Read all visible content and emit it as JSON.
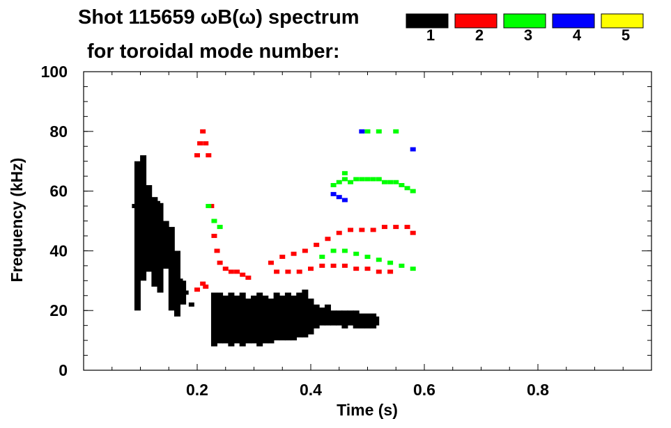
{
  "chart_data": {
    "type": "scatter",
    "title_line1": "Shot 115659 ωB(ω) spectrum",
    "title_line2": "for toroidal mode number:",
    "xlabel": "Time (s)",
    "ylabel": "Frequency (kHz)",
    "xlim": [
      0.0,
      1.0
    ],
    "ylim": [
      0,
      100
    ],
    "x_ticks": [
      {
        "value": 0.2,
        "label": "0.2"
      },
      {
        "value": 0.4,
        "label": "0.4"
      },
      {
        "value": 0.6,
        "label": "0.6"
      },
      {
        "value": 0.8,
        "label": "0.8"
      }
    ],
    "y_ticks": [
      {
        "value": 0,
        "label": "0"
      },
      {
        "value": 20,
        "label": "20"
      },
      {
        "value": 40,
        "label": "40"
      },
      {
        "value": 60,
        "label": "60"
      },
      {
        "value": 80,
        "label": "80"
      },
      {
        "value": 100,
        "label": "100"
      }
    ],
    "legend": [
      {
        "label": "1",
        "color": "#000000"
      },
      {
        "label": "2",
        "color": "#ff0000"
      },
      {
        "label": "3",
        "color": "#00ff00"
      },
      {
        "label": "4",
        "color": "#0000ff"
      },
      {
        "label": "5",
        "color": "#ffff00"
      }
    ],
    "series": [
      {
        "name": "n=1",
        "color": "#000000",
        "points": [
          [
            0.09,
            55
          ],
          [
            0.095,
            62
          ],
          [
            0.1,
            66
          ],
          [
            0.105,
            62
          ],
          [
            0.11,
            55
          ],
          [
            0.115,
            48
          ],
          [
            0.12,
            52
          ],
          [
            0.13,
            56
          ],
          [
            0.14,
            48
          ],
          [
            0.15,
            42
          ],
          [
            0.16,
            35
          ],
          [
            0.17,
            30
          ],
          [
            0.18,
            26
          ],
          [
            0.19,
            22
          ],
          [
            0.23,
            16
          ],
          [
            0.25,
            17
          ],
          [
            0.27,
            16
          ],
          [
            0.29,
            16
          ],
          [
            0.31,
            17
          ],
          [
            0.33,
            16
          ],
          [
            0.35,
            17
          ],
          [
            0.37,
            17
          ],
          [
            0.39,
            18
          ],
          [
            0.41,
            18
          ],
          [
            0.43,
            17
          ],
          [
            0.45,
            18
          ],
          [
            0.47,
            17
          ],
          [
            0.49,
            17
          ],
          [
            0.51,
            16
          ]
        ],
        "bands": [
          {
            "x": 0.095,
            "ymin": 20,
            "ymax": 70
          },
          {
            "x": 0.105,
            "ymin": 30,
            "ymax": 72
          },
          {
            "x": 0.115,
            "ymin": 33,
            "ymax": 62
          },
          {
            "x": 0.125,
            "ymin": 28,
            "ymax": 58
          },
          {
            "x": 0.135,
            "ymin": 26,
            "ymax": 56
          },
          {
            "x": 0.145,
            "ymin": 34,
            "ymax": 50
          },
          {
            "x": 0.155,
            "ymin": 20,
            "ymax": 48
          },
          {
            "x": 0.165,
            "ymin": 18,
            "ymax": 40
          },
          {
            "x": 0.175,
            "ymin": 22,
            "ymax": 30
          },
          {
            "x": 0.23,
            "ymin": 8,
            "ymax": 26
          },
          {
            "x": 0.24,
            "ymin": 9,
            "ymax": 26
          },
          {
            "x": 0.25,
            "ymin": 9,
            "ymax": 25
          },
          {
            "x": 0.26,
            "ymin": 8,
            "ymax": 26
          },
          {
            "x": 0.27,
            "ymin": 9,
            "ymax": 25
          },
          {
            "x": 0.28,
            "ymin": 8,
            "ymax": 26
          },
          {
            "x": 0.29,
            "ymin": 9,
            "ymax": 24
          },
          {
            "x": 0.3,
            "ymin": 9,
            "ymax": 25
          },
          {
            "x": 0.31,
            "ymin": 8,
            "ymax": 26
          },
          {
            "x": 0.32,
            "ymin": 9,
            "ymax": 25
          },
          {
            "x": 0.33,
            "ymin": 9,
            "ymax": 24
          },
          {
            "x": 0.34,
            "ymin": 10,
            "ymax": 26
          },
          {
            "x": 0.35,
            "ymin": 10,
            "ymax": 25
          },
          {
            "x": 0.36,
            "ymin": 10,
            "ymax": 26
          },
          {
            "x": 0.37,
            "ymin": 10,
            "ymax": 25
          },
          {
            "x": 0.38,
            "ymin": 11,
            "ymax": 26
          },
          {
            "x": 0.39,
            "ymin": 11,
            "ymax": 27
          },
          {
            "x": 0.4,
            "ymin": 12,
            "ymax": 24
          },
          {
            "x": 0.41,
            "ymin": 14,
            "ymax": 22
          },
          {
            "x": 0.42,
            "ymin": 15,
            "ymax": 21
          },
          {
            "x": 0.43,
            "ymin": 15,
            "ymax": 22
          },
          {
            "x": 0.44,
            "ymin": 15,
            "ymax": 20
          },
          {
            "x": 0.45,
            "ymin": 15,
            "ymax": 20
          },
          {
            "x": 0.46,
            "ymin": 14,
            "ymax": 20
          },
          {
            "x": 0.47,
            "ymin": 15,
            "ymax": 20
          },
          {
            "x": 0.48,
            "ymin": 14,
            "ymax": 20
          },
          {
            "x": 0.49,
            "ymin": 14,
            "ymax": 19
          },
          {
            "x": 0.5,
            "ymin": 14,
            "ymax": 19
          },
          {
            "x": 0.51,
            "ymin": 14,
            "ymax": 19
          },
          {
            "x": 0.515,
            "ymin": 15,
            "ymax": 18
          }
        ]
      },
      {
        "name": "n=2",
        "color": "#ff0000",
        "points": [
          [
            0.2,
            72
          ],
          [
            0.205,
            76
          ],
          [
            0.21,
            80
          ],
          [
            0.215,
            76
          ],
          [
            0.22,
            72
          ],
          [
            0.225,
            55
          ],
          [
            0.23,
            45
          ],
          [
            0.235,
            40
          ],
          [
            0.24,
            36
          ],
          [
            0.25,
            34
          ],
          [
            0.26,
            33
          ],
          [
            0.27,
            33
          ],
          [
            0.28,
            32
          ],
          [
            0.29,
            31
          ],
          [
            0.2,
            27
          ],
          [
            0.21,
            29
          ],
          [
            0.215,
            28
          ],
          [
            0.33,
            36
          ],
          [
            0.35,
            38
          ],
          [
            0.37,
            39
          ],
          [
            0.39,
            40
          ],
          [
            0.41,
            42
          ],
          [
            0.43,
            44
          ],
          [
            0.45,
            46
          ],
          [
            0.47,
            47
          ],
          [
            0.49,
            47
          ],
          [
            0.51,
            47
          ],
          [
            0.53,
            48
          ],
          [
            0.55,
            48
          ],
          [
            0.57,
            48
          ],
          [
            0.58,
            46
          ],
          [
            0.34,
            33
          ],
          [
            0.36,
            33
          ],
          [
            0.38,
            33
          ],
          [
            0.4,
            34
          ],
          [
            0.42,
            35
          ],
          [
            0.44,
            35
          ],
          [
            0.46,
            35
          ],
          [
            0.48,
            34
          ],
          [
            0.5,
            34
          ],
          [
            0.52,
            33
          ],
          [
            0.54,
            33
          ]
        ],
        "bands": []
      },
      {
        "name": "n=3",
        "color": "#00ff00",
        "points": [
          [
            0.22,
            55
          ],
          [
            0.23,
            50
          ],
          [
            0.24,
            48
          ],
          [
            0.44,
            62
          ],
          [
            0.45,
            63
          ],
          [
            0.46,
            64
          ],
          [
            0.47,
            63
          ],
          [
            0.48,
            64
          ],
          [
            0.49,
            64
          ],
          [
            0.5,
            64
          ],
          [
            0.51,
            64
          ],
          [
            0.52,
            64
          ],
          [
            0.53,
            63
          ],
          [
            0.54,
            63
          ],
          [
            0.55,
            63
          ],
          [
            0.56,
            62
          ],
          [
            0.57,
            61
          ],
          [
            0.58,
            60
          ],
          [
            0.42,
            38
          ],
          [
            0.44,
            40
          ],
          [
            0.46,
            40
          ],
          [
            0.48,
            39
          ],
          [
            0.5,
            38
          ],
          [
            0.52,
            37
          ],
          [
            0.54,
            36
          ],
          [
            0.56,
            35
          ],
          [
            0.58,
            34
          ],
          [
            0.46,
            66
          ],
          [
            0.5,
            80
          ],
          [
            0.52,
            80
          ],
          [
            0.55,
            80
          ]
        ],
        "bands": []
      },
      {
        "name": "n=4",
        "color": "#0000ff",
        "points": [
          [
            0.44,
            59
          ],
          [
            0.45,
            58
          ],
          [
            0.46,
            57
          ],
          [
            0.49,
            80
          ],
          [
            0.58,
            74
          ]
        ],
        "bands": []
      },
      {
        "name": "n=5",
        "color": "#ffff00",
        "points": [],
        "bands": []
      }
    ]
  }
}
